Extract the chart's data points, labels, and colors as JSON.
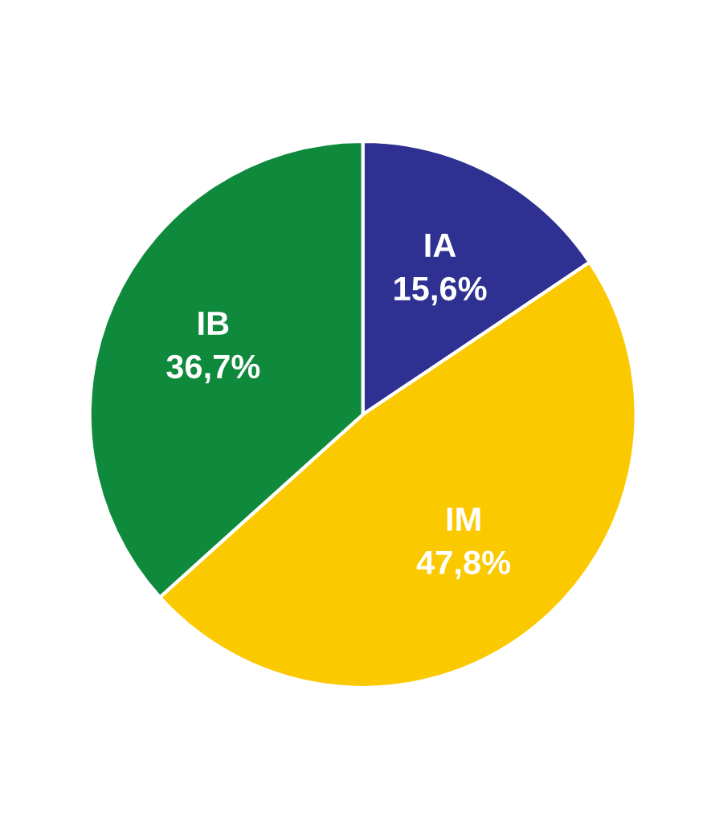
{
  "chart_data": {
    "type": "pie",
    "categories": [
      "IA",
      "IM",
      "IB"
    ],
    "values": [
      15.6,
      47.8,
      36.7
    ],
    "value_labels": [
      "15,6%",
      "47,8%",
      "36,7%"
    ],
    "colors": [
      "#2e3192",
      "#fbc900",
      "#0f8a3c"
    ]
  }
}
